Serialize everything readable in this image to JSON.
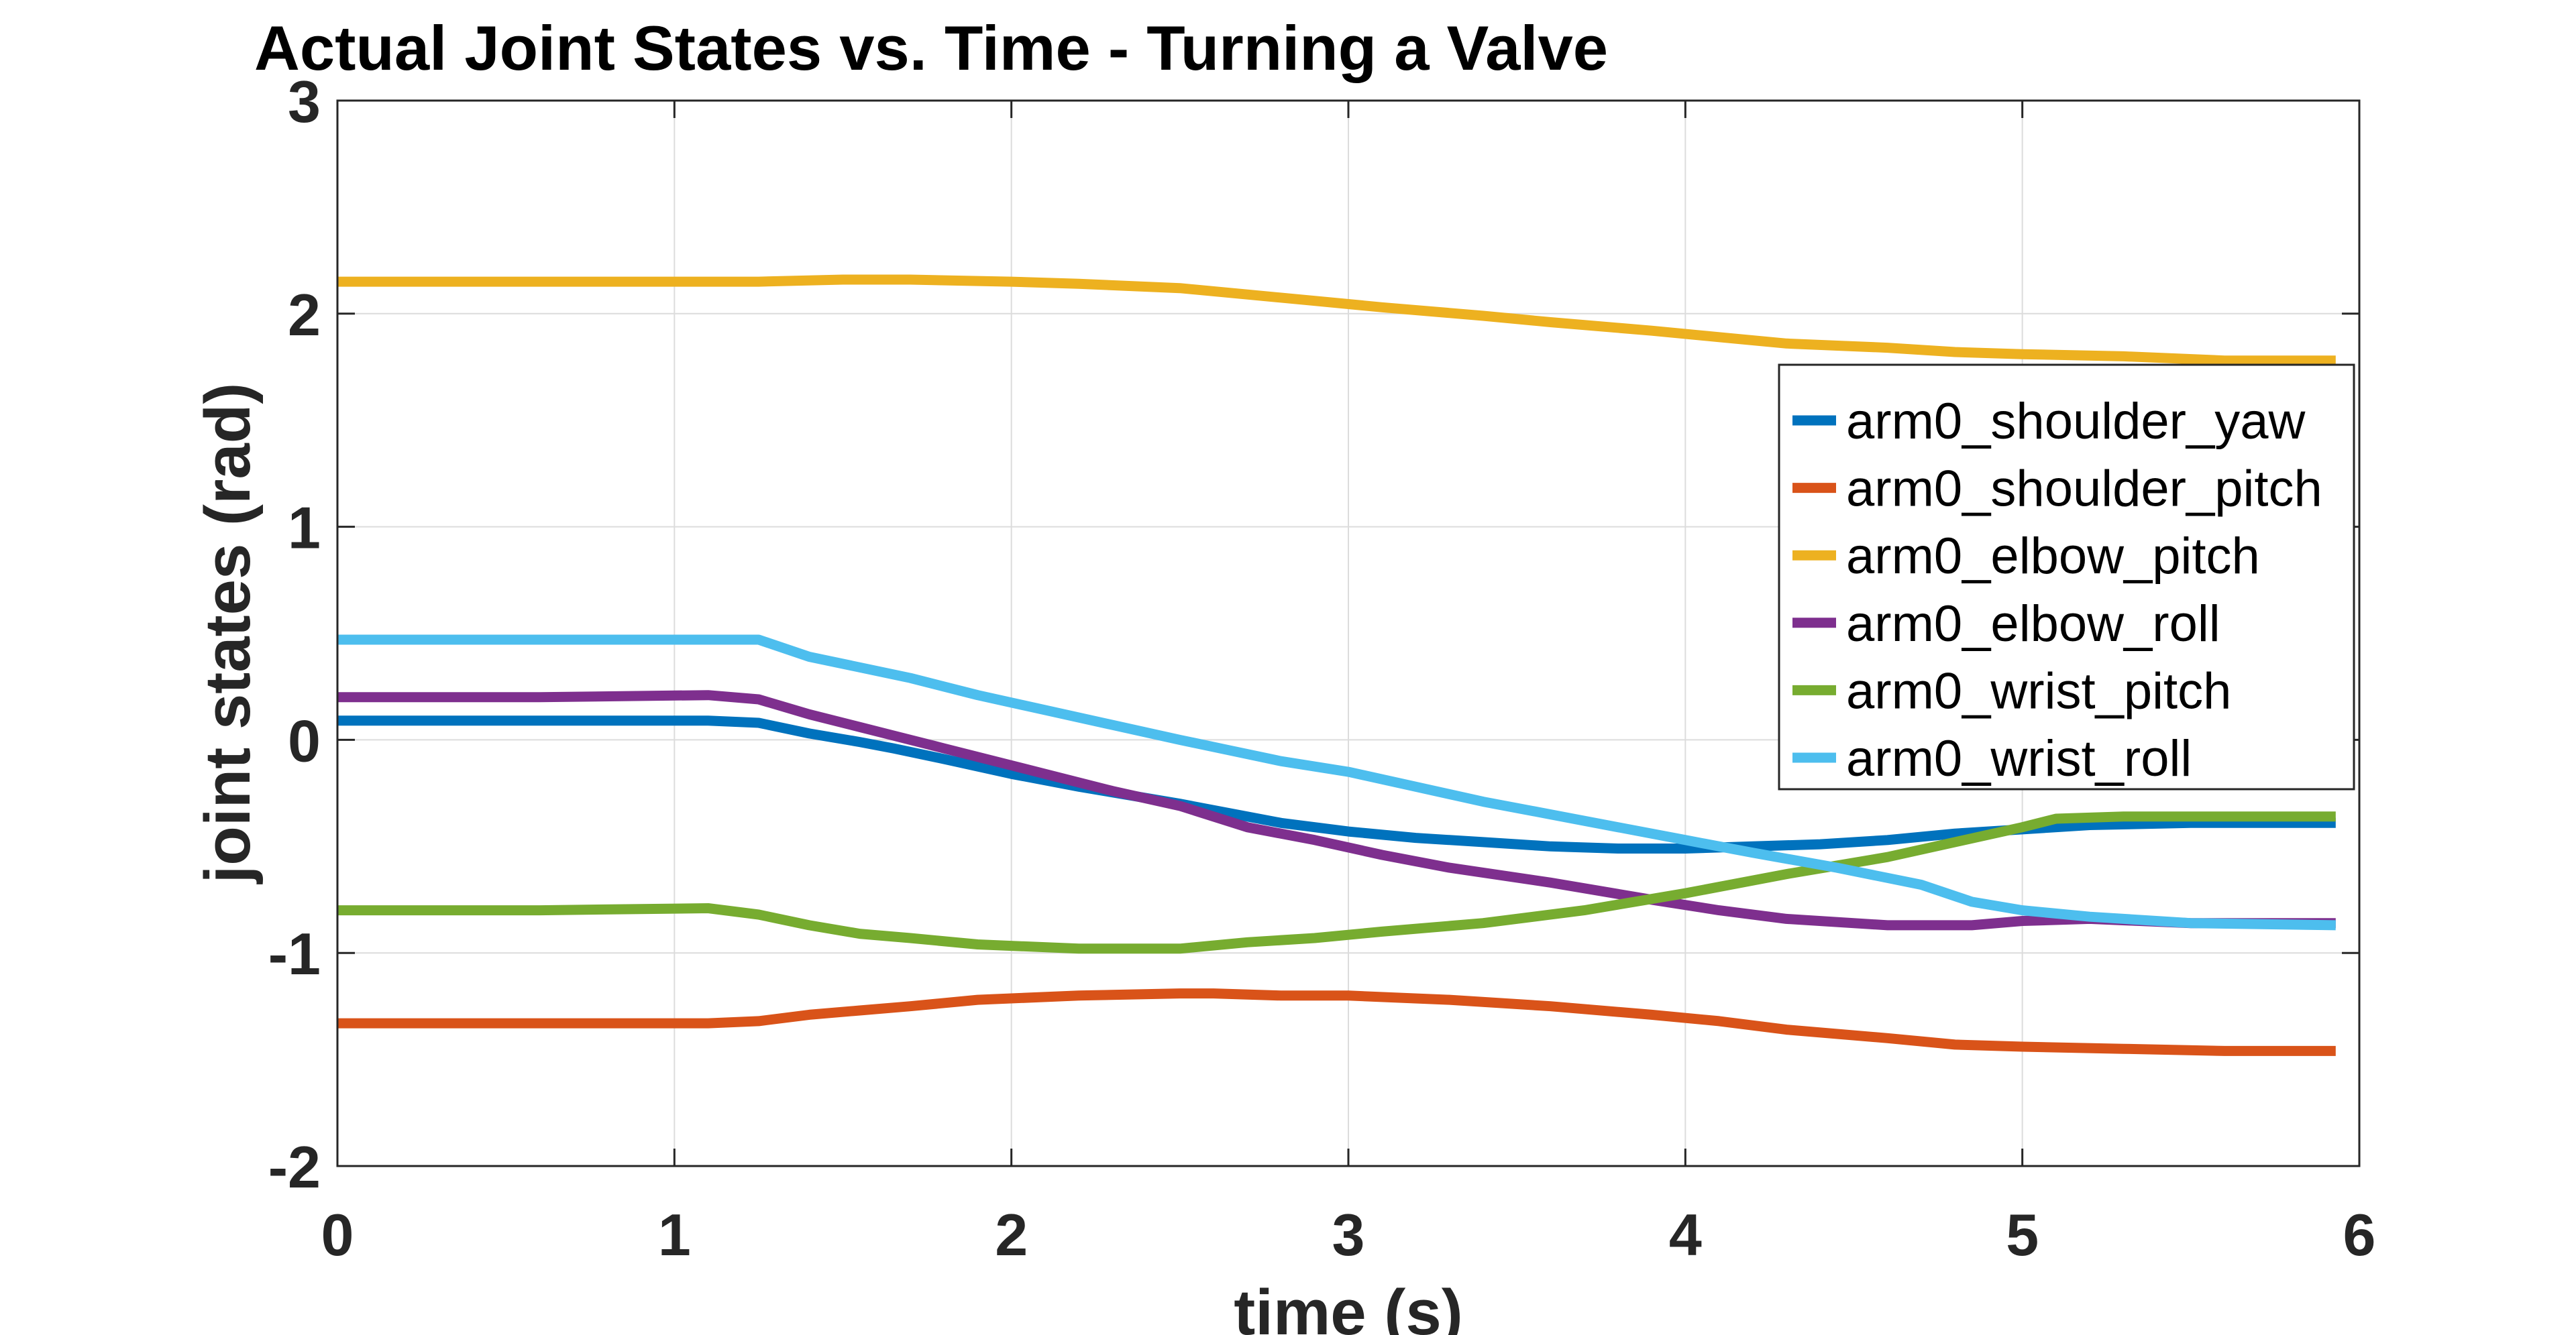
{
  "chart_data": {
    "type": "line",
    "title": "Actual Joint States vs. Time - Turning a Valve",
    "xlabel": "time (s)",
    "ylabel": "joint states (rad)",
    "xlim": [
      0,
      6
    ],
    "ylim": [
      -2,
      3
    ],
    "xticks": [
      "0",
      "1",
      "2",
      "3",
      "4",
      "5",
      "6"
    ],
    "yticks": [
      "-2",
      "-1",
      "0",
      "1",
      "2",
      "3"
    ],
    "grid": true,
    "legend_position": "upper-right",
    "series": [
      {
        "name": "arm0_shoulder_yaw",
        "color": "#0072BD",
        "x": [
          0,
          0.6,
          1.1,
          1.25,
          1.4,
          1.55,
          1.65,
          1.8,
          2.0,
          2.2,
          2.5,
          2.8,
          2.9,
          3.0,
          3.2,
          3.4,
          3.6,
          3.8,
          4.0,
          4.2,
          4.4,
          4.6,
          4.8,
          5.0,
          5.2,
          5.5,
          5.93
        ],
        "y": [
          0.09,
          0.09,
          0.09,
          0.08,
          0.03,
          -0.01,
          -0.04,
          -0.09,
          -0.16,
          -0.22,
          -0.3,
          -0.39,
          -0.41,
          -0.43,
          -0.46,
          -0.48,
          -0.5,
          -0.51,
          -0.51,
          -0.5,
          -0.49,
          -0.47,
          -0.44,
          -0.42,
          -0.4,
          -0.39,
          -0.39
        ]
      },
      {
        "name": "arm0_shoulder_pitch",
        "color": "#D95319",
        "x": [
          0,
          0.6,
          1.1,
          1.25,
          1.4,
          1.55,
          1.7,
          1.9,
          2.2,
          2.5,
          2.6,
          2.8,
          3.0,
          3.3,
          3.6,
          3.9,
          4.1,
          4.3,
          4.6,
          4.8,
          5.0,
          5.3,
          5.6,
          5.93
        ],
        "y": [
          -1.33,
          -1.33,
          -1.33,
          -1.32,
          -1.29,
          -1.27,
          -1.25,
          -1.22,
          -1.2,
          -1.19,
          -1.19,
          -1.2,
          -1.2,
          -1.22,
          -1.25,
          -1.29,
          -1.32,
          -1.36,
          -1.4,
          -1.43,
          -1.44,
          -1.45,
          -1.46,
          -1.46
        ]
      },
      {
        "name": "arm0_elbow_pitch",
        "color": "#EDB120",
        "x": [
          0,
          0.6,
          1.1,
          1.25,
          1.5,
          1.7,
          2.0,
          2.2,
          2.5,
          2.7,
          2.9,
          3.1,
          3.4,
          3.6,
          3.9,
          4.1,
          4.3,
          4.6,
          4.8,
          5.0,
          5.3,
          5.6,
          5.93
        ],
        "y": [
          2.15,
          2.15,
          2.15,
          2.15,
          2.16,
          2.16,
          2.15,
          2.14,
          2.12,
          2.09,
          2.06,
          2.03,
          1.99,
          1.96,
          1.92,
          1.89,
          1.86,
          1.84,
          1.82,
          1.81,
          1.8,
          1.78,
          1.78
        ]
      },
      {
        "name": "arm0_elbow_roll",
        "color": "#7E2F8E",
        "x": [
          0,
          0.6,
          1.1,
          1.25,
          1.4,
          1.55,
          1.65,
          1.8,
          2.0,
          2.3,
          2.5,
          2.7,
          2.9,
          3.1,
          3.3,
          3.6,
          3.9,
          4.1,
          4.3,
          4.6,
          4.85,
          5.0,
          5.2,
          5.5,
          5.93
        ],
        "y": [
          0.2,
          0.2,
          0.21,
          0.19,
          0.12,
          0.06,
          0.02,
          -0.04,
          -0.12,
          -0.24,
          -0.31,
          -0.41,
          -0.47,
          -0.54,
          -0.6,
          -0.67,
          -0.75,
          -0.8,
          -0.84,
          -0.87,
          -0.87,
          -0.85,
          -0.84,
          -0.86,
          -0.86
        ]
      },
      {
        "name": "arm0_wrist_pitch",
        "color": "#77AC30",
        "x": [
          0,
          0.6,
          1.1,
          1.25,
          1.4,
          1.55,
          1.7,
          1.9,
          2.2,
          2.5,
          2.7,
          2.9,
          3.1,
          3.4,
          3.7,
          4.0,
          4.3,
          4.6,
          4.8,
          5.0,
          5.1,
          5.3,
          5.5,
          5.93
        ],
        "y": [
          -0.8,
          -0.8,
          -0.79,
          -0.82,
          -0.87,
          -0.91,
          -0.93,
          -0.96,
          -0.98,
          -0.98,
          -0.95,
          -0.93,
          -0.9,
          -0.86,
          -0.8,
          -0.72,
          -0.63,
          -0.55,
          -0.48,
          -0.41,
          -0.37,
          -0.36,
          -0.36,
          -0.36
        ]
      },
      {
        "name": "arm0_wrist_roll",
        "color": "#4DBEEE",
        "x": [
          0,
          0.6,
          1.1,
          1.25,
          1.4,
          1.55,
          1.7,
          1.9,
          2.1,
          2.3,
          2.5,
          2.65,
          2.8,
          3.0,
          3.2,
          3.4,
          3.6,
          3.8,
          4.0,
          4.2,
          4.45,
          4.7,
          4.85,
          5.0,
          5.2,
          5.5,
          5.93
        ],
        "y": [
          0.47,
          0.47,
          0.47,
          0.47,
          0.39,
          0.34,
          0.29,
          0.21,
          0.14,
          0.07,
          0.0,
          -0.05,
          -0.1,
          -0.15,
          -0.22,
          -0.29,
          -0.35,
          -0.41,
          -0.47,
          -0.53,
          -0.6,
          -0.68,
          -0.76,
          -0.8,
          -0.83,
          -0.86,
          -0.87
        ]
      }
    ]
  }
}
